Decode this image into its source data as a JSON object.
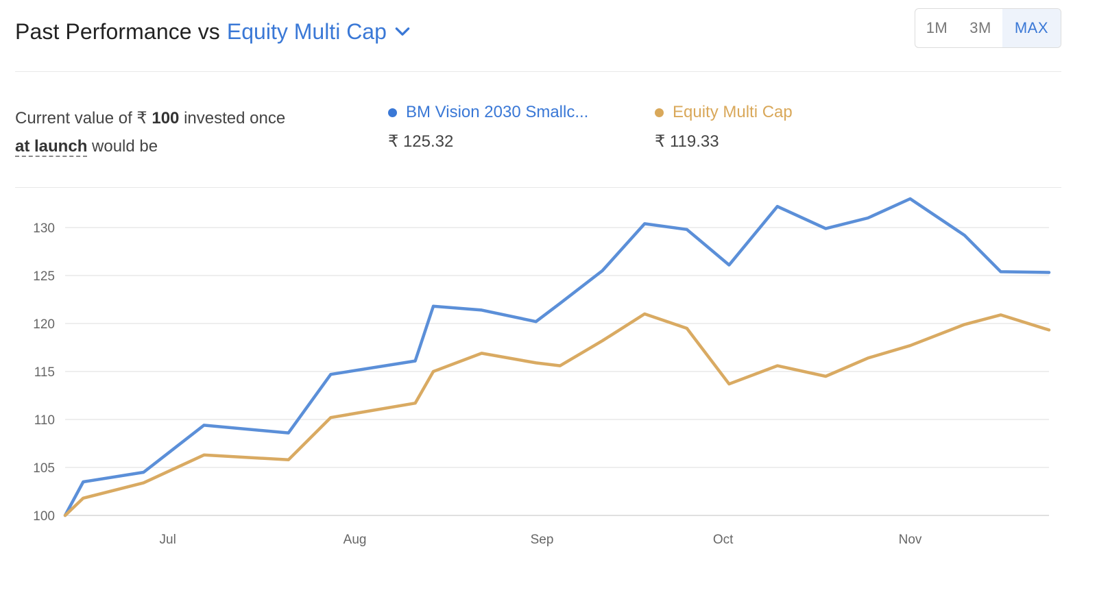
{
  "header": {
    "title": "Past Performance vs",
    "benchmark": "Equity Multi Cap",
    "ranges": [
      "1M",
      "3M",
      "MAX"
    ],
    "active_range": "MAX",
    "chevron_icon": "chevron-down-icon"
  },
  "summary": {
    "prefix": "Current value of ₹ ",
    "amount": "100",
    "suffix": " invested once",
    "period": "at launch",
    "tail": " would be"
  },
  "legend": [
    {
      "name": "BM Vision 2030 Smallc...",
      "value": "₹ 125.32",
      "color": "#3a78d6"
    },
    {
      "name": "Equity Multi Cap",
      "value": "₹ 119.33",
      "color": "#d9a85a"
    }
  ],
  "chart_data": {
    "type": "line",
    "title": "",
    "xlabel": "",
    "ylabel": "",
    "ylim": [
      100,
      133
    ],
    "yticks": [
      100,
      105,
      110,
      115,
      120,
      125,
      130
    ],
    "xlim": [
      "2023-06-14",
      "2023-11-24"
    ],
    "xticks": [
      {
        "label": "Jul",
        "date": "2023-07-01"
      },
      {
        "label": "Aug",
        "date": "2023-08-01"
      },
      {
        "label": "Sep",
        "date": "2023-09-01"
      },
      {
        "label": "Oct",
        "date": "2023-10-01"
      },
      {
        "label": "Nov",
        "date": "2023-11-01"
      }
    ],
    "grid": true,
    "series": [
      {
        "name": "BM Vision 2030 Smallc...",
        "color": "#5b8fd8",
        "x": [
          "2023-06-14",
          "2023-06-17",
          "2023-06-27",
          "2023-07-07",
          "2023-07-21",
          "2023-07-28",
          "2023-08-11",
          "2023-08-14",
          "2023-08-22",
          "2023-08-31",
          "2023-09-04",
          "2023-09-11",
          "2023-09-18",
          "2023-09-25",
          "2023-10-02",
          "2023-10-10",
          "2023-10-18",
          "2023-10-25",
          "2023-11-01",
          "2023-11-10",
          "2023-11-16",
          "2023-11-24"
        ],
        "y": [
          100,
          103.5,
          104.5,
          109.4,
          108.6,
          114.7,
          116.1,
          121.8,
          121.4,
          120.2,
          122.1,
          125.5,
          130.4,
          129.8,
          126.1,
          132.2,
          129.9,
          131.0,
          133.0,
          129.2,
          125.4,
          125.32
        ]
      },
      {
        "name": "Equity Multi Cap",
        "color": "#d9aa62",
        "x": [
          "2023-06-14",
          "2023-06-17",
          "2023-06-27",
          "2023-07-07",
          "2023-07-21",
          "2023-07-28",
          "2023-08-11",
          "2023-08-14",
          "2023-08-22",
          "2023-08-31",
          "2023-09-04",
          "2023-09-11",
          "2023-09-18",
          "2023-09-25",
          "2023-10-02",
          "2023-10-10",
          "2023-10-18",
          "2023-10-25",
          "2023-11-01",
          "2023-11-10",
          "2023-11-16",
          "2023-11-24"
        ],
        "y": [
          100,
          101.8,
          103.4,
          106.3,
          105.8,
          110.2,
          111.7,
          115.0,
          116.9,
          115.9,
          115.6,
          118.2,
          121.0,
          119.5,
          113.7,
          115.6,
          114.5,
          116.4,
          117.7,
          119.9,
          120.9,
          119.33
        ]
      }
    ]
  }
}
